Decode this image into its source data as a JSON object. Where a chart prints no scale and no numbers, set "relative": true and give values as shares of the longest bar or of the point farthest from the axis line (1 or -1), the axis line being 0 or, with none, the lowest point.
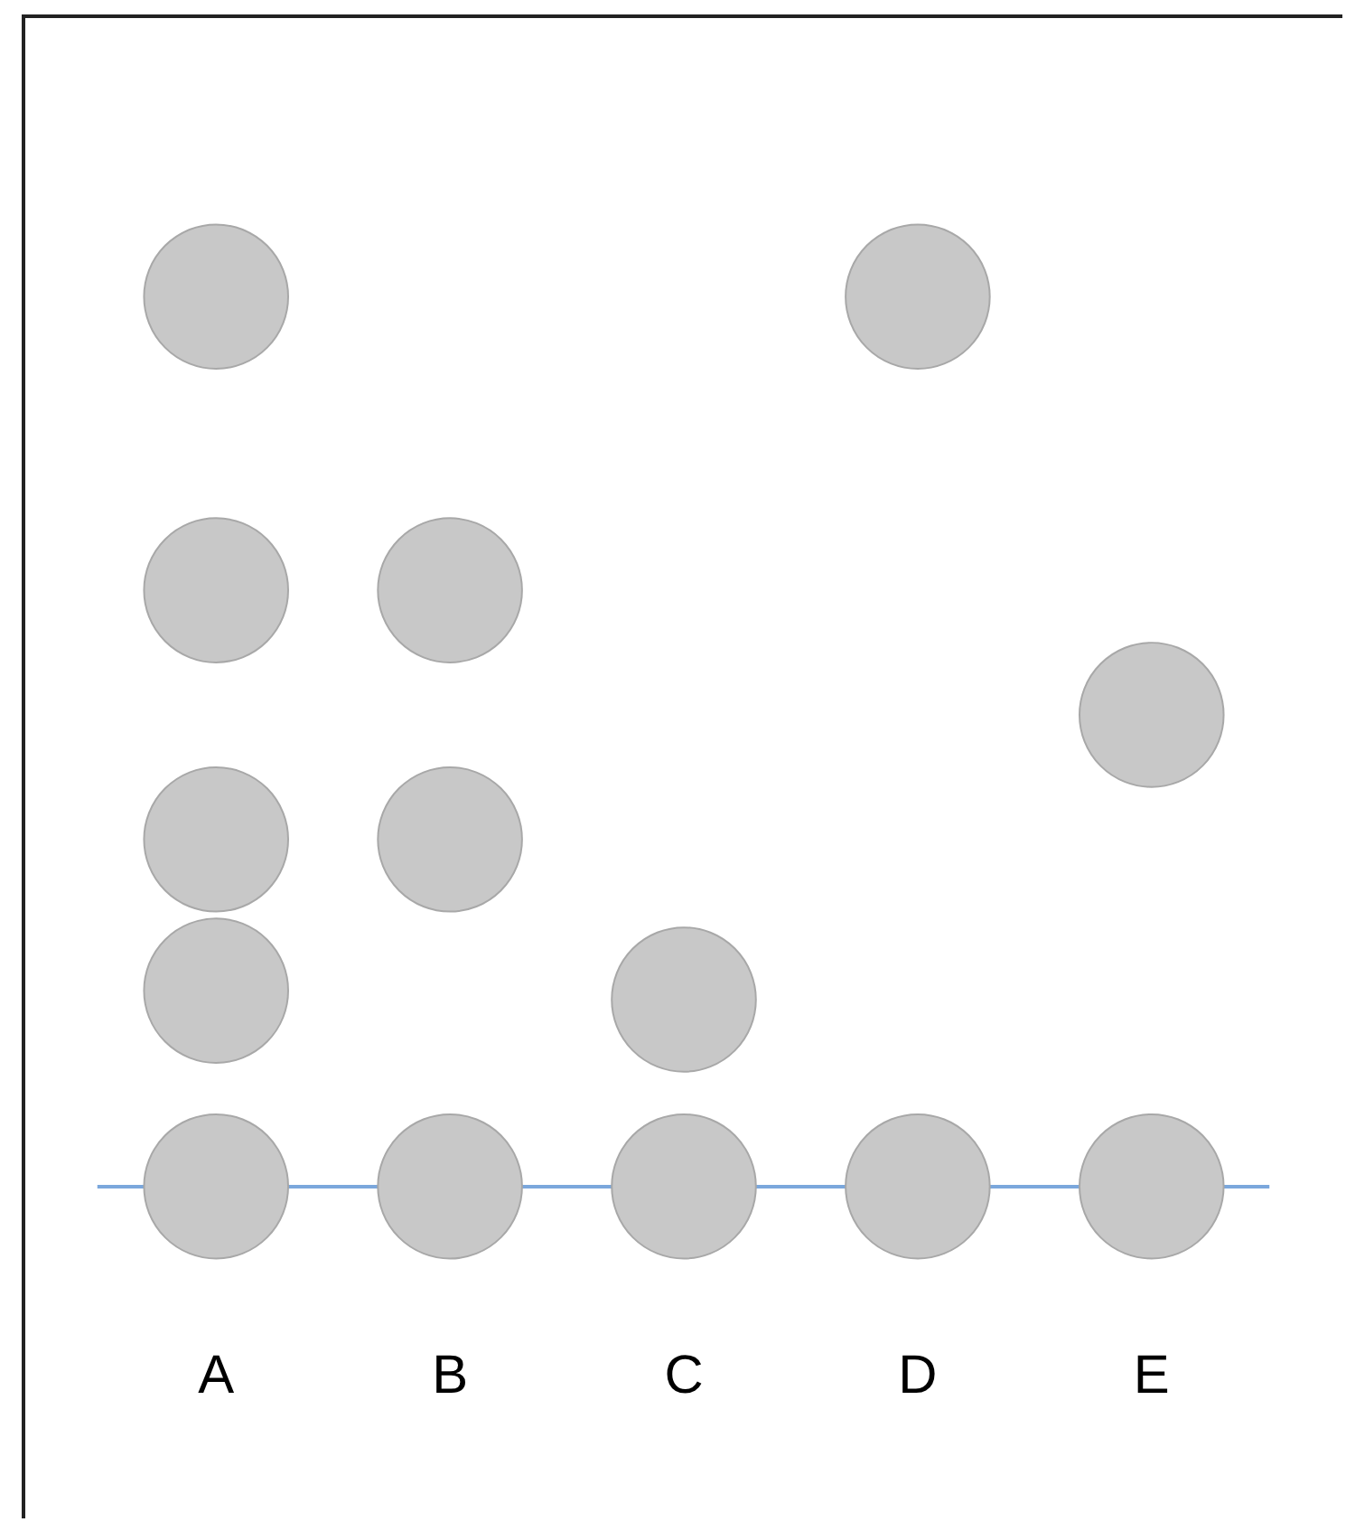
{
  "chart_data": {
    "type": "scatter",
    "relative": true,
    "categories": [
      "A",
      "B",
      "C",
      "D",
      "E"
    ],
    "marker": "circle",
    "grid": false,
    "legend": false,
    "series": [
      {
        "color": "#c8c8c8",
        "x": [
          "A",
          "A",
          "A",
          "A",
          "A",
          "B",
          "B",
          "B",
          "C",
          "C",
          "D",
          "D",
          "E",
          "E"
        ],
        "values": [
          1,
          0.67,
          0.39,
          0.22,
          0,
          0.67,
          0.39,
          0,
          0.21,
          0,
          1,
          0,
          0.53,
          0
        ]
      }
    ]
  }
}
